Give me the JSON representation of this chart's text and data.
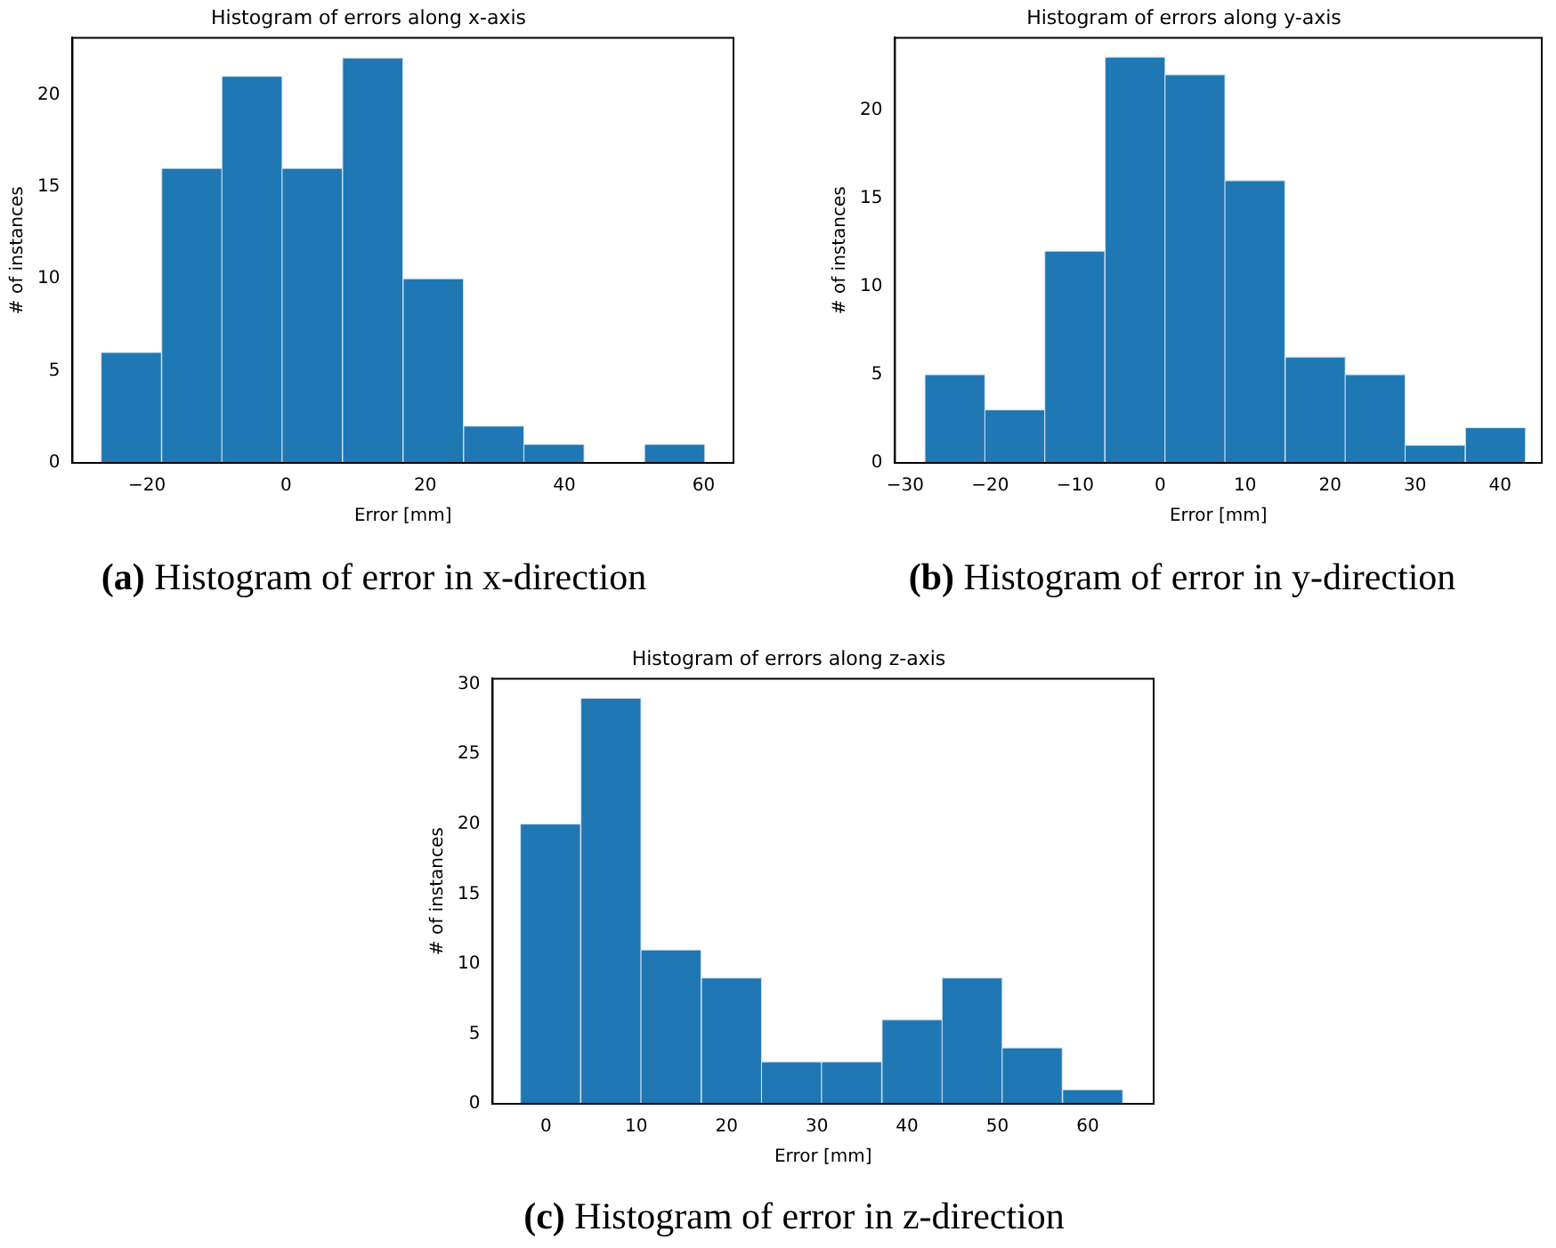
{
  "chart_data": [
    {
      "type": "histogram",
      "title": "Histogram of errors along x-axis",
      "xlabel": "Error [mm]",
      "ylabel": "# of instances",
      "color": "#1f77b4",
      "bins": [
        -26.6,
        -17.9,
        -9.2,
        -0.6,
        8.1,
        16.8,
        25.5,
        34.2,
        42.8,
        51.5,
        60.2
      ],
      "values": [
        6,
        16,
        21,
        16,
        22,
        10,
        2,
        1,
        0,
        1
      ],
      "xlim": [
        -30.7,
        64.3
      ],
      "ylim": [
        0,
        23.1
      ],
      "xticks": [
        {
          "value": -20,
          "label": "−20"
        },
        0,
        20,
        40,
        60
      ],
      "yticks": [
        0,
        5,
        10,
        15,
        20
      ],
      "grid": false,
      "legend": false,
      "annotations": [
        "(a) Histogram of error in x-direction"
      ]
    },
    {
      "type": "histogram",
      "title": "Histogram of errors along y-axis",
      "xlabel": "Error [mm]",
      "ylabel": "# of instances",
      "color": "#1f77b4",
      "bins": [
        -27.7,
        -20.6,
        -13.6,
        -6.5,
        0.6,
        7.6,
        14.7,
        21.8,
        28.8,
        35.9,
        43.0
      ],
      "values": [
        5,
        3,
        12,
        23,
        22,
        16,
        6,
        5,
        1,
        2
      ],
      "xlim": [
        -31.2,
        44.9
      ],
      "ylim": [
        0,
        24.1
      ],
      "xticks": [
        {
          "value": -30,
          "label": "−30"
        },
        {
          "value": -20,
          "label": "−20"
        },
        {
          "value": -10,
          "label": "−10"
        },
        0,
        10,
        20,
        30,
        40
      ],
      "yticks": [
        0,
        5,
        10,
        15,
        20
      ],
      "grid": false,
      "legend": false,
      "annotations": [
        "(b) Histogram of error in y-direction"
      ]
    },
    {
      "type": "histogram",
      "title": "Histogram of errors along z-axis",
      "xlabel": "Error [mm]",
      "ylabel": "# of instances",
      "color": "#1f77b4",
      "bins": [
        -2.9,
        3.9,
        10.5,
        17.2,
        23.9,
        30.5,
        37.2,
        43.9,
        50.5,
        57.2,
        63.9
      ],
      "values": [
        20,
        29,
        11,
        9,
        3,
        3,
        6,
        9,
        4,
        1
      ],
      "xlim": [
        -5.9,
        67.3
      ],
      "ylim": [
        0,
        30.4
      ],
      "xticks": [
        0,
        10,
        20,
        30,
        40,
        50,
        60
      ],
      "yticks": [
        0,
        5,
        10,
        15,
        20,
        25,
        30
      ],
      "grid": false,
      "legend": false,
      "annotations": [
        "(c) Histogram of error in z-direction"
      ]
    }
  ]
}
